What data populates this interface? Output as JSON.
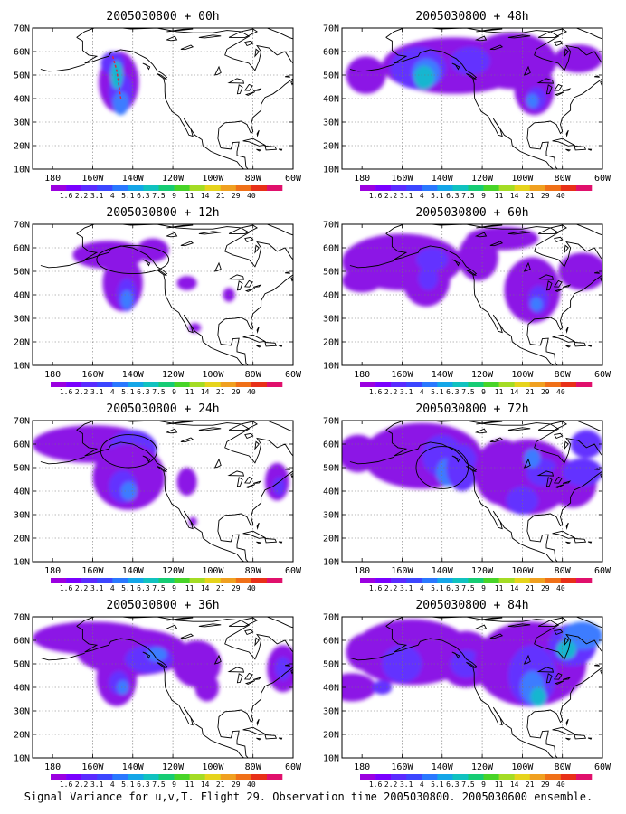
{
  "panels": [
    {
      "title": "2005030800 + 00h"
    },
    {
      "title": "2005030800 + 48h"
    },
    {
      "title": "2005030800 + 12h"
    },
    {
      "title": "2005030800 + 60h"
    },
    {
      "title": "2005030800 + 24h"
    },
    {
      "title": "2005030800 + 72h"
    },
    {
      "title": "2005030800 + 36h"
    },
    {
      "title": "2005030800 + 84h"
    }
  ],
  "lat_ticks": [
    "10N",
    "20N",
    "30N",
    "40N",
    "50N",
    "60N",
    "70N"
  ],
  "lon_ticks": [
    "180",
    "160W",
    "140W",
    "120W",
    "100W",
    "80W",
    "60W"
  ],
  "colorbar": {
    "labels": [
      "1.6",
      "2.2",
      "3.1",
      "4",
      "5.1",
      "6.3",
      "7.5",
      "9",
      "11",
      "14",
      "21",
      "29",
      "40"
    ],
    "colors": [
      "#9b00e0",
      "#7a00ff",
      "#5a2bff",
      "#3c46ff",
      "#2a78ff",
      "#14a6e8",
      "#10c2c0",
      "#16cc74",
      "#48d428",
      "#a4dc24",
      "#e6d41c",
      "#f0a020",
      "#f07018",
      "#e83018",
      "#e0106c"
    ]
  },
  "caption": "Signal Variance for u,v,T. Flight 29. Observation time 2005030800. 2005030600 ensemble."
}
